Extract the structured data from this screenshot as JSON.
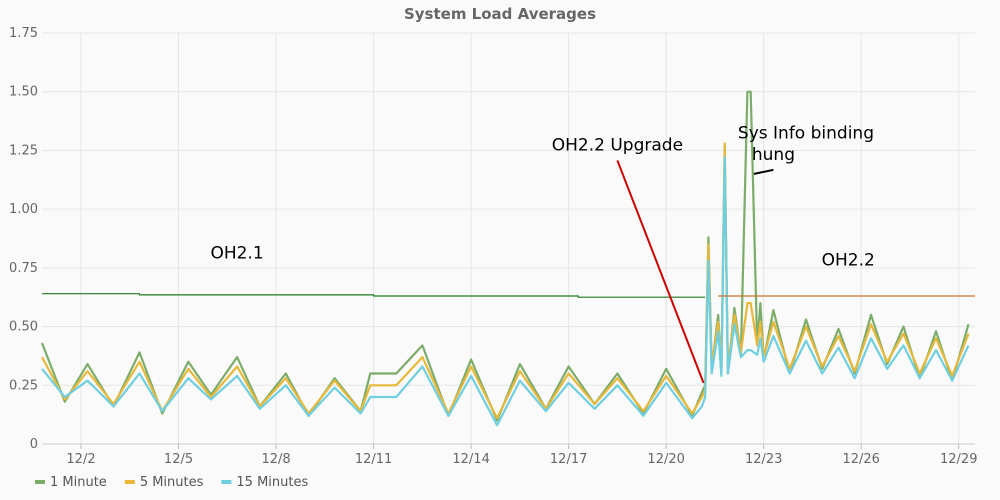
{
  "chart_data": {
    "type": "line",
    "title": "System Load Averages",
    "xlabel": "",
    "ylabel": "",
    "x_tick_labels": [
      "12/2",
      "12/5",
      "12/8",
      "12/11",
      "12/14",
      "12/17",
      "12/20",
      "12/23",
      "12/26",
      "12/29"
    ],
    "x_tick_values": [
      2,
      5,
      8,
      11,
      14,
      17,
      20,
      23,
      26,
      29
    ],
    "xlim": [
      0.8,
      29.5
    ],
    "ylim": [
      0,
      1.75
    ],
    "y_ticks": [
      0,
      0.25,
      0.5,
      0.75,
      1.0,
      1.25,
      1.5,
      1.75
    ],
    "y_tick_labels": [
      "0",
      "0.25",
      "0.50",
      "0.75",
      "1.00",
      "1.25",
      "1.50",
      "1.75"
    ],
    "grid": true,
    "legend_position": "bottom-left",
    "series": [
      {
        "name": "1 Minute",
        "color": "#7cac6a",
        "x": [
          0.8,
          1.5,
          2.2,
          3.0,
          3.8,
          4.5,
          5.3,
          6.0,
          6.8,
          7.5,
          8.3,
          9.0,
          9.8,
          10.6,
          10.9,
          11.7,
          12.5,
          13.3,
          14.0,
          14.8,
          15.5,
          16.3,
          17.0,
          17.8,
          18.5,
          19.3,
          20.0,
          20.8,
          21.1,
          21.2,
          21.3,
          21.4,
          21.6,
          21.7,
          21.8,
          21.9,
          22.1,
          22.3,
          22.5,
          22.6,
          22.8,
          22.9,
          23.0,
          23.3,
          23.8,
          24.3,
          24.8,
          25.3,
          25.8,
          26.3,
          26.8,
          27.3,
          27.8,
          28.3,
          28.8,
          29.3
        ],
        "values": [
          0.43,
          0.18,
          0.34,
          0.16,
          0.39,
          0.13,
          0.35,
          0.21,
          0.37,
          0.16,
          0.3,
          0.12,
          0.28,
          0.14,
          0.3,
          0.3,
          0.42,
          0.12,
          0.36,
          0.1,
          0.34,
          0.15,
          0.33,
          0.17,
          0.3,
          0.13,
          0.32,
          0.12,
          0.22,
          0.25,
          0.88,
          0.32,
          0.55,
          0.3,
          1.27,
          0.3,
          0.58,
          0.38,
          1.5,
          1.5,
          0.42,
          0.6,
          0.36,
          0.57,
          0.3,
          0.53,
          0.32,
          0.49,
          0.3,
          0.55,
          0.34,
          0.5,
          0.28,
          0.48,
          0.27,
          0.51
        ]
      },
      {
        "name": "5 Minutes",
        "color": "#e8b83a",
        "x": [
          0.8,
          1.5,
          2.2,
          3.0,
          3.8,
          4.5,
          5.3,
          6.0,
          6.8,
          7.5,
          8.3,
          9.0,
          9.8,
          10.6,
          10.9,
          11.7,
          12.5,
          13.3,
          14.0,
          14.8,
          15.5,
          16.3,
          17.0,
          17.8,
          18.5,
          19.3,
          20.0,
          20.8,
          21.1,
          21.2,
          21.3,
          21.4,
          21.6,
          21.7,
          21.8,
          21.9,
          22.1,
          22.3,
          22.5,
          22.6,
          22.8,
          22.9,
          23.0,
          23.3,
          23.8,
          24.3,
          24.8,
          25.3,
          25.8,
          26.3,
          26.8,
          27.3,
          27.8,
          28.3,
          28.8,
          29.3
        ],
        "values": [
          0.37,
          0.19,
          0.31,
          0.17,
          0.35,
          0.14,
          0.32,
          0.2,
          0.33,
          0.16,
          0.28,
          0.13,
          0.27,
          0.14,
          0.25,
          0.25,
          0.37,
          0.13,
          0.33,
          0.11,
          0.31,
          0.15,
          0.3,
          0.17,
          0.28,
          0.14,
          0.29,
          0.13,
          0.2,
          0.23,
          0.85,
          0.33,
          0.52,
          0.31,
          1.28,
          0.32,
          0.55,
          0.39,
          0.6,
          0.6,
          0.42,
          0.52,
          0.37,
          0.52,
          0.32,
          0.5,
          0.33,
          0.46,
          0.31,
          0.51,
          0.35,
          0.47,
          0.3,
          0.45,
          0.29,
          0.47
        ]
      },
      {
        "name": "15 Minutes",
        "color": "#6fcfe0",
        "x": [
          0.8,
          1.5,
          2.2,
          3.0,
          3.8,
          4.5,
          5.3,
          6.0,
          6.8,
          7.5,
          8.3,
          9.0,
          9.8,
          10.6,
          10.9,
          11.7,
          12.5,
          13.3,
          14.0,
          14.8,
          15.5,
          16.3,
          17.0,
          17.8,
          18.5,
          19.3,
          20.0,
          20.8,
          21.1,
          21.2,
          21.3,
          21.4,
          21.6,
          21.7,
          21.8,
          21.9,
          22.1,
          22.3,
          22.5,
          22.6,
          22.8,
          22.9,
          23.0,
          23.3,
          23.8,
          24.3,
          24.8,
          25.3,
          25.8,
          26.3,
          26.8,
          27.3,
          27.8,
          28.3,
          28.8,
          29.3
        ],
        "values": [
          0.32,
          0.2,
          0.27,
          0.16,
          0.3,
          0.14,
          0.28,
          0.19,
          0.29,
          0.15,
          0.25,
          0.12,
          0.24,
          0.13,
          0.2,
          0.2,
          0.33,
          0.12,
          0.29,
          0.08,
          0.27,
          0.14,
          0.26,
          0.15,
          0.25,
          0.12,
          0.26,
          0.11,
          0.16,
          0.2,
          0.78,
          0.3,
          0.48,
          0.29,
          1.22,
          0.3,
          0.51,
          0.37,
          0.4,
          0.4,
          0.38,
          0.45,
          0.35,
          0.46,
          0.3,
          0.44,
          0.3,
          0.41,
          0.28,
          0.45,
          0.32,
          0.42,
          0.28,
          0.4,
          0.27,
          0.42
        ]
      },
      {
        "name": "",
        "color": "#1f7a1f",
        "x": [
          0.8,
          3.8,
          3.8,
          11.0,
          11.0,
          17.3,
          17.3,
          21.2
        ],
        "values": [
          0.64,
          0.64,
          0.635,
          0.635,
          0.63,
          0.63,
          0.625,
          0.625
        ]
      },
      {
        "name": "",
        "color": "#c8762b",
        "x": [
          21.6,
          29.5
        ],
        "values": [
          0.63,
          0.63
        ]
      }
    ],
    "annotations": [
      {
        "text": "OH2.1",
        "x": 6.8,
        "y": 0.79
      },
      {
        "text": "OH2.2 Upgrade",
        "x": 18.5,
        "y": 1.25,
        "arrow_to_x": 21.15,
        "arrow_to_y": 0.26,
        "arrow_color": "#cc0000"
      },
      {
        "text": "Sys Info binding",
        "x": 24.3,
        "y": 1.3
      },
      {
        "text": "hung",
        "x": 23.3,
        "y": 1.21,
        "arrow_to_x": 22.7,
        "arrow_to_y": 1.15,
        "arrow_color": "#000000"
      },
      {
        "text": "OH2.2",
        "x": 25.6,
        "y": 0.76
      }
    ]
  }
}
